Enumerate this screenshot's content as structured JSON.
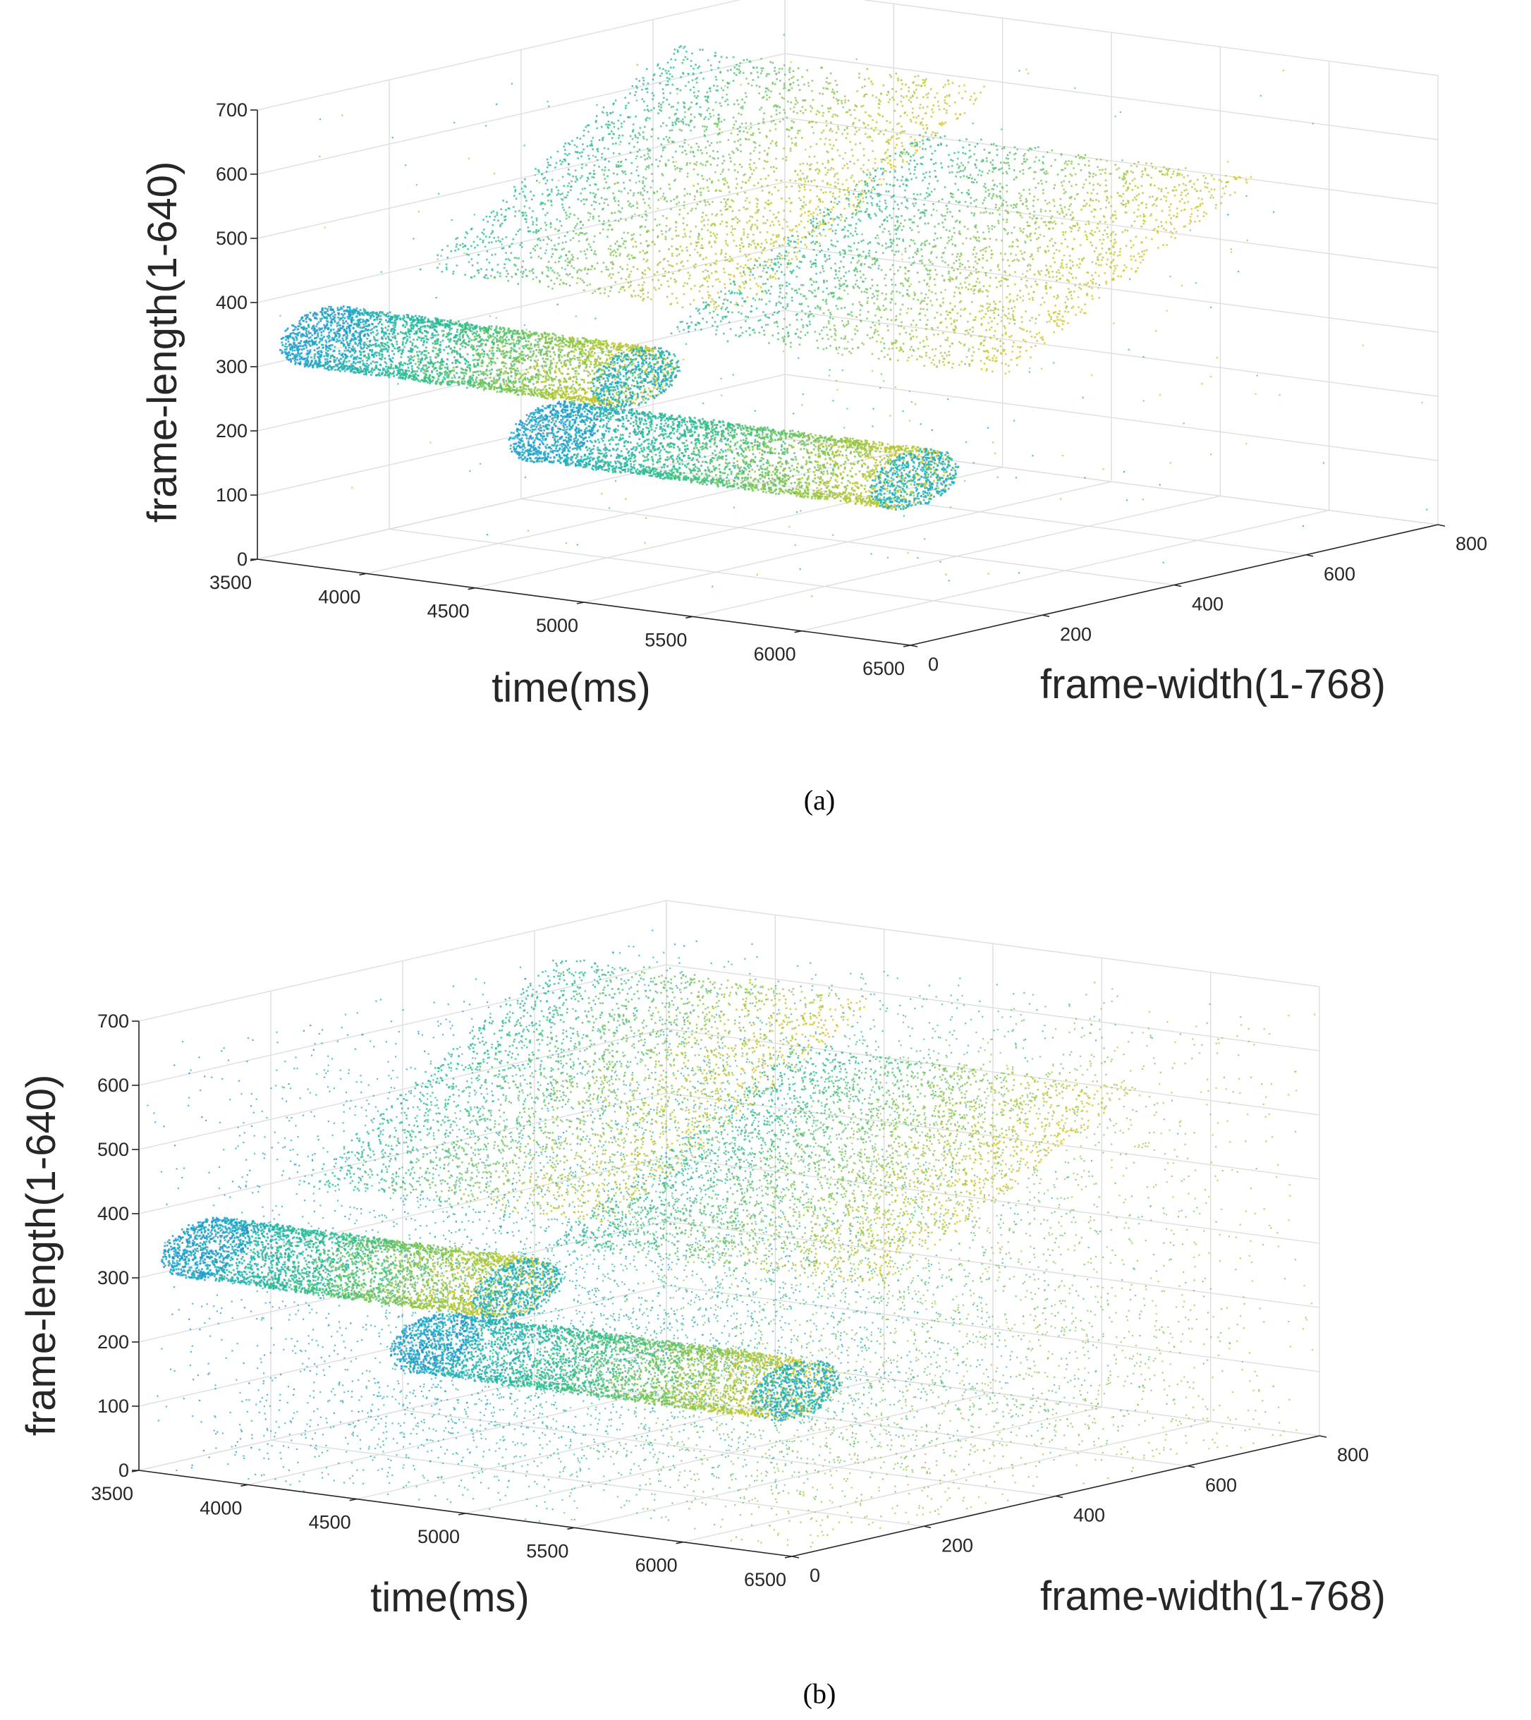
{
  "chart_data": [
    {
      "type": "scatter",
      "panel": "(a)",
      "caption": "(a)",
      "xlabel": "time(ms)",
      "ylabel": "frame-width(1-768)",
      "zlabel": "frame-length(1-640)",
      "xlim": [
        3500,
        6500
      ],
      "ylim": [
        0,
        800
      ],
      "zlim": [
        0,
        700
      ],
      "xticks": [
        3500,
        4000,
        4500,
        5000,
        5500,
        6000,
        6500
      ],
      "yticks": [
        0,
        200,
        400,
        600,
        800
      ],
      "zticks": [
        0,
        100,
        200,
        300,
        400,
        500,
        600,
        700
      ],
      "grid": true,
      "colormap": [
        "#3e26a8",
        "#1fa5d3",
        "#2cbf8c",
        "#a7c83a",
        "#f5c521"
      ],
      "series": [
        {
          "kind": "cylinder",
          "x": [
            3620,
            5050
          ],
          "y": 60,
          "z": 340,
          "r": 45,
          "color": "#3cb87a"
        },
        {
          "kind": "cylinder",
          "x": [
            4520,
            6180
          ],
          "y": 110,
          "z": 220,
          "r": 45,
          "color": "#3cb87a"
        },
        {
          "kind": "sheet",
          "x": [
            3720,
            5180
          ],
          "y": [
            170,
            560
          ],
          "z": [
            420,
            680
          ],
          "color": "#9cc84e"
        },
        {
          "kind": "sheet",
          "x": [
            4720,
            6260
          ],
          "y": [
            220,
            600
          ],
          "z": [
            360,
            580
          ],
          "color": "#a9c64a"
        },
        {
          "kind": "noise",
          "count": 380,
          "density": "sparse"
        }
      ]
    },
    {
      "type": "scatter",
      "panel": "(b)",
      "caption": "(b)",
      "xlabel": "time(ms)",
      "ylabel": "frame-width(1-768)",
      "zlabel": "frame-length(1-640)",
      "xlim": [
        3500,
        6500
      ],
      "ylim": [
        0,
        800
      ],
      "zlim": [
        0,
        700
      ],
      "xticks": [
        3500,
        4000,
        4500,
        5000,
        5500,
        6000,
        6500
      ],
      "yticks": [
        0,
        200,
        400,
        600,
        800
      ],
      "zticks": [
        0,
        100,
        200,
        300,
        400,
        500,
        600,
        700
      ],
      "grid": true,
      "colormap": [
        "#3e26a8",
        "#1fa5d3",
        "#2cbf8c",
        "#a7c83a",
        "#f5c521"
      ],
      "series": [
        {
          "kind": "cylinder",
          "x": [
            3620,
            5050
          ],
          "y": 60,
          "z": 340,
          "r": 45,
          "color": "#2fb58c"
        },
        {
          "kind": "cylinder",
          "x": [
            4520,
            6180
          ],
          "y": 110,
          "z": 220,
          "r": 45,
          "color": "#36b488"
        },
        {
          "kind": "sheet",
          "x": [
            3720,
            5180
          ],
          "y": [
            170,
            560
          ],
          "z": [
            420,
            680
          ],
          "color": "#45bd73"
        },
        {
          "kind": "sheet",
          "x": [
            4720,
            6260
          ],
          "y": [
            220,
            600
          ],
          "z": [
            360,
            580
          ],
          "color": "#6fbe5e"
        },
        {
          "kind": "noise",
          "count": 9000,
          "density": "dense"
        }
      ]
    }
  ]
}
